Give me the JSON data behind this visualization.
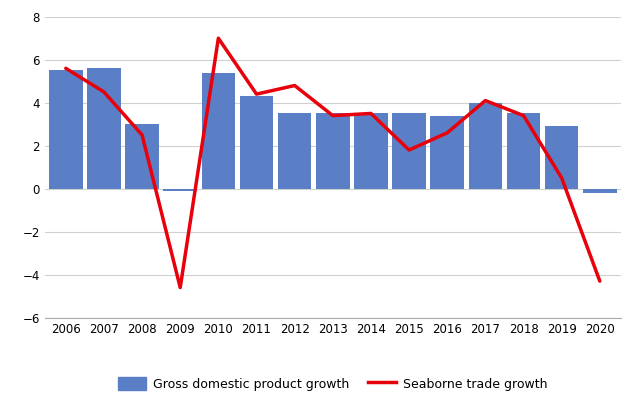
{
  "years": [
    2006,
    2007,
    2008,
    2009,
    2010,
    2011,
    2012,
    2013,
    2014,
    2015,
    2016,
    2017,
    2018,
    2019,
    2020
  ],
  "gdp_growth": [
    5.5,
    5.6,
    3.0,
    -0.1,
    5.4,
    4.3,
    3.5,
    3.5,
    3.5,
    3.5,
    3.4,
    4.0,
    3.5,
    2.9,
    -0.2
  ],
  "seaborne_growth": [
    5.6,
    4.5,
    2.5,
    -4.6,
    7.0,
    4.4,
    4.8,
    3.4,
    3.5,
    1.8,
    2.6,
    4.1,
    3.4,
    0.5,
    -4.3
  ],
  "bar_color": "#5B7FC7",
  "line_color": "#E8000B",
  "ylim": [
    -6,
    8
  ],
  "yticks": [
    -6,
    -4,
    -2,
    0,
    2,
    4,
    6,
    8
  ],
  "legend_gdp": "Gross domestic product growth",
  "legend_seaborne": "Seaborne trade growth",
  "background_color": "#ffffff",
  "grid_color": "#d0d0d0",
  "line_width": 2.5,
  "bar_width": 0.88
}
